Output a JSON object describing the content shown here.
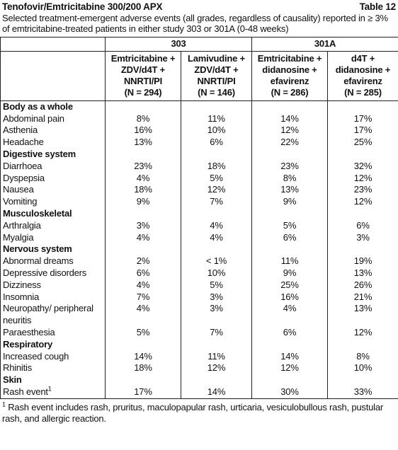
{
  "header": {
    "title": "Tenofovir/Emtricitabine 300/200 APX",
    "table_label": "Table 12",
    "caption": "Selected treatment-emergent adverse events (all grades, regardless of causality) reported in ≥ 3% of emtricitabine-treated patients in either study 303 or 301A (0-48 weeks)"
  },
  "table": {
    "groups": [
      "303",
      "301A"
    ],
    "columns": [
      [
        "Emtricitabine +",
        "ZDV/d4T +",
        "NNRTI/PI",
        "(N = 294)"
      ],
      [
        "Lamivudine +",
        "ZDV/d4T +",
        "NNRTI/PI",
        "(N = 146)"
      ],
      [
        "Emtricitabine +",
        "didanosine +",
        "efavirenz",
        "(N = 286)"
      ],
      [
        "d4T +",
        "didanosine +",
        "efavirenz",
        "(N = 285)"
      ]
    ],
    "sections": [
      {
        "name": "Body as a whole",
        "rows": [
          {
            "label": "Abdominal pain",
            "values": [
              "8%",
              "11%",
              "14%",
              "17%"
            ]
          },
          {
            "label": "Asthenia",
            "values": [
              "16%",
              "10%",
              "12%",
              "17%"
            ]
          },
          {
            "label": "Headache",
            "values": [
              "13%",
              "6%",
              "22%",
              "25%"
            ]
          }
        ]
      },
      {
        "name": "Digestive system",
        "rows": [
          {
            "label": "Diarrhoea",
            "values": [
              "23%",
              "18%",
              "23%",
              "32%"
            ]
          },
          {
            "label": "Dyspepsia",
            "values": [
              "4%",
              "5%",
              "8%",
              "12%"
            ]
          },
          {
            "label": "Nausea",
            "values": [
              "18%",
              "12%",
              "13%",
              "23%"
            ]
          },
          {
            "label": "Vomiting",
            "values": [
              "9%",
              "7%",
              "9%",
              "12%"
            ]
          }
        ]
      },
      {
        "name": "Musculoskeletal",
        "rows": [
          {
            "label": "Arthralgia",
            "values": [
              "3%",
              "4%",
              "5%",
              "6%"
            ]
          },
          {
            "label": "Myalgia",
            "values": [
              "4%",
              "4%",
              "6%",
              "3%"
            ]
          }
        ]
      },
      {
        "name": "Nervous system",
        "rows": [
          {
            "label": "Abnormal dreams",
            "values": [
              "2%",
              "< 1%",
              "11%",
              "19%"
            ]
          },
          {
            "label": "Depressive disorders",
            "values": [
              "6%",
              "10%",
              "9%",
              "13%"
            ]
          },
          {
            "label": "Dizziness",
            "values": [
              "4%",
              "5%",
              "25%",
              "26%"
            ]
          },
          {
            "label": "Insomnia",
            "values": [
              "7%",
              "3%",
              "16%",
              "21%"
            ]
          },
          {
            "label": "Neuropathy/ peripheral neuritis",
            "values": [
              "4%",
              "3%",
              "4%",
              "13%"
            ]
          },
          {
            "label": "Paraesthesia",
            "values": [
              "5%",
              "7%",
              "6%",
              "12%"
            ]
          }
        ]
      },
      {
        "name": "Respiratory",
        "rows": [
          {
            "label": "Increased cough",
            "values": [
              "14%",
              "11%",
              "14%",
              "8%"
            ]
          },
          {
            "label": "Rhinitis",
            "values": [
              "18%",
              "12%",
              "12%",
              "10%"
            ]
          }
        ]
      },
      {
        "name": "Skin",
        "rows": [
          {
            "label": "Rash event",
            "note": "1",
            "values": [
              "17%",
              "14%",
              "30%",
              "33%"
            ]
          }
        ]
      }
    ]
  },
  "footnote": {
    "marker": "1",
    "text": "Rash event includes rash, pruritus, maculopapular rash, urticaria, vesiculobullous rash, pustular rash, and allergic reaction."
  }
}
